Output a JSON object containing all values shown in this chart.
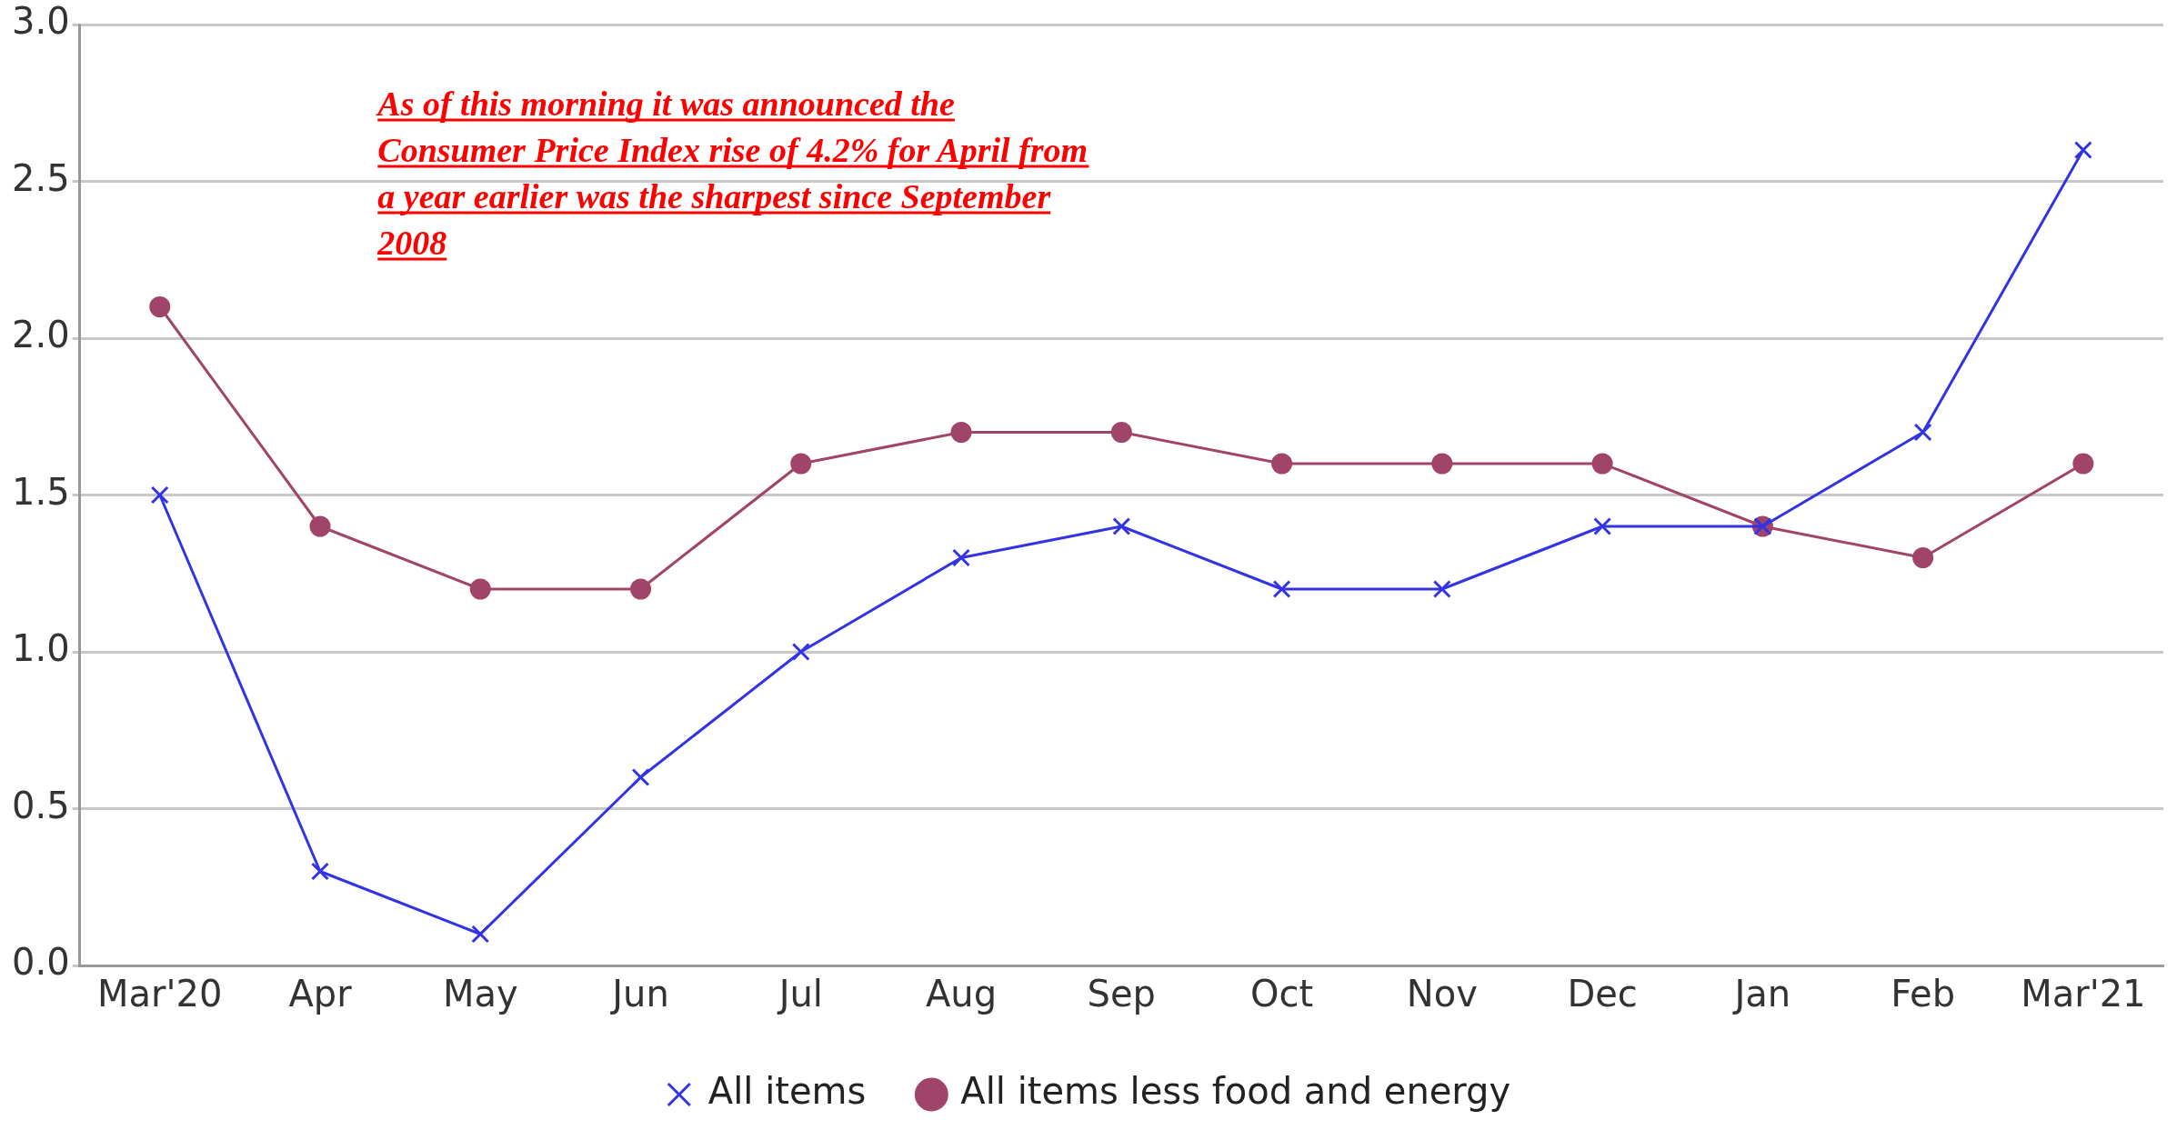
{
  "chart_data": {
    "type": "line",
    "categories": [
      "Mar'20",
      "Apr",
      "May",
      "Jun",
      "Jul",
      "Aug",
      "Sep",
      "Oct",
      "Nov",
      "Dec",
      "Jan",
      "Feb",
      "Mar'21"
    ],
    "series": [
      {
        "name": "All items",
        "color": "#3333e6",
        "marker": "cross",
        "values": [
          1.5,
          0.3,
          0.1,
          0.6,
          1.0,
          1.3,
          1.4,
          1.2,
          1.2,
          1.4,
          1.4,
          1.7,
          2.6
        ]
      },
      {
        "name": "All items less food and energy",
        "color": "#a0446a",
        "marker": "circle",
        "values": [
          2.1,
          1.4,
          1.2,
          1.2,
          1.6,
          1.7,
          1.7,
          1.6,
          1.6,
          1.6,
          1.4,
          1.3,
          1.6
        ]
      }
    ],
    "ylim": [
      0,
      3.0
    ],
    "yticks": [
      {
        "value": 0,
        "label": "0.0"
      },
      {
        "value": 0.5,
        "label": "0.5"
      },
      {
        "value": 1,
        "label": "1.0"
      },
      {
        "value": 1.5,
        "label": "1.5"
      },
      {
        "value": 2,
        "label": "2.0"
      },
      {
        "value": 2.5,
        "label": "2.5"
      },
      {
        "value": 3,
        "label": "3.0"
      }
    ],
    "grid": "y",
    "legend": "bottom",
    "line_style": "solid",
    "annotations": [
      "As of this morning it was announced the Consumer Price Index rise of 4.2% for April from a year earlier was the sharpest since September 2008"
    ]
  }
}
